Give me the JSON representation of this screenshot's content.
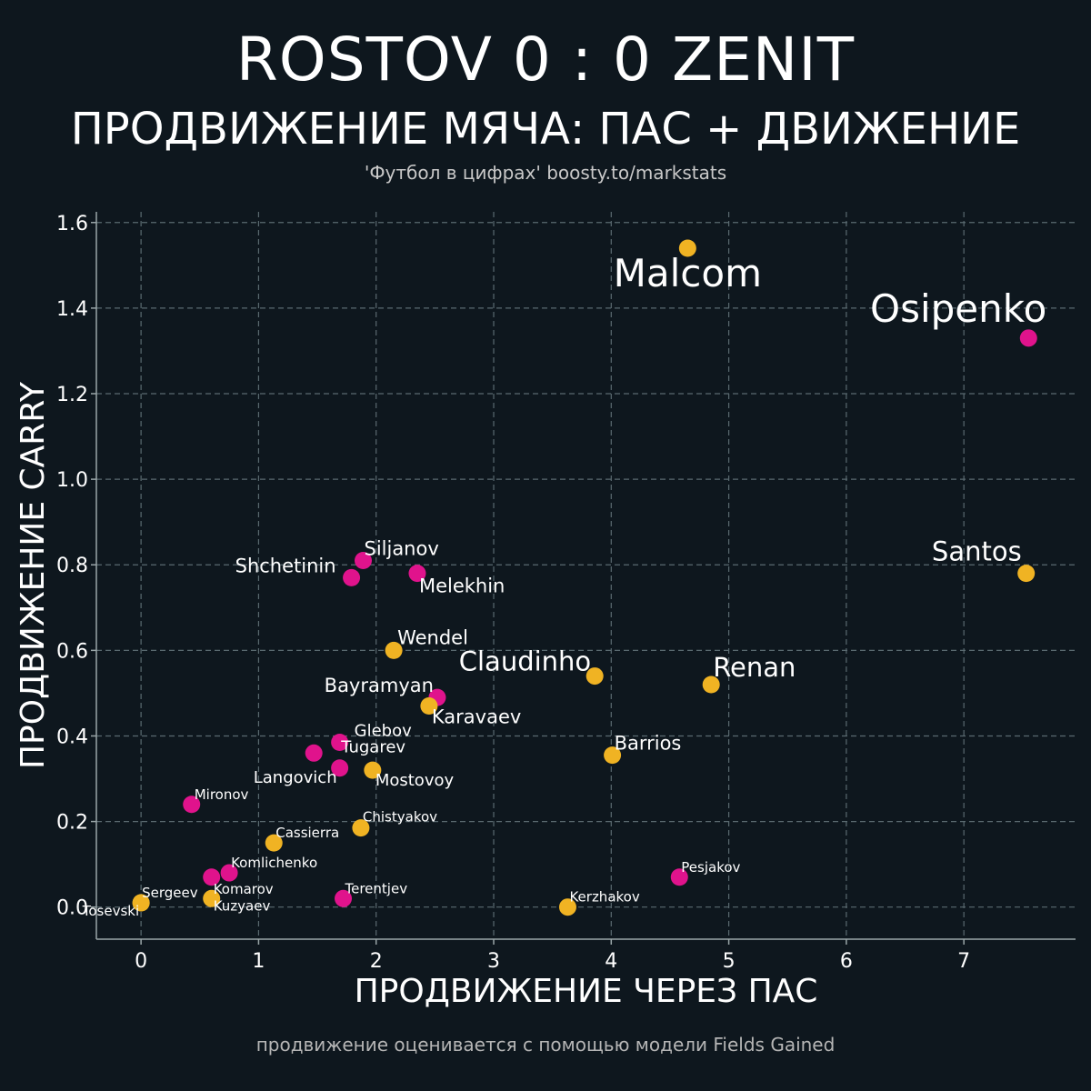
{
  "header": {
    "title": "ROSTOV 0 : 0 ZENIT",
    "subtitle": "ПРОДВИЖЕНИЕ МЯЧА: ПАС + ДВИЖЕНИЕ",
    "source": "'Футбол в цифрах' boosty.to/markstats"
  },
  "footer": {
    "note": "продвижение оценивается с помощью модели Fields Gained"
  },
  "colors": {
    "background": "#0e171e",
    "rostov": "#f0b323",
    "zenit": "#e0138c",
    "grid": "#5a6a70"
  },
  "chart_data": {
    "type": "scatter",
    "xlabel": "ПРОДВИЖЕНИЕ ЧЕРЕЗ ПАС",
    "ylabel": "ПРОДВИЖЕНИЕ CARRY",
    "xlim": [
      -0.38,
      7.95
    ],
    "ylim": [
      -0.075,
      1.625
    ],
    "xticks": [
      0,
      1,
      2,
      3,
      4,
      5,
      6,
      7
    ],
    "yticks": [
      0.0,
      0.2,
      0.4,
      0.6,
      0.8,
      1.0,
      1.2,
      1.4,
      1.6
    ],
    "grid": true,
    "points": [
      {
        "name": "Malcom",
        "x": 4.65,
        "y": 1.54,
        "color": "yellow",
        "size": "xl",
        "anchor": "middle",
        "dx": 0,
        "dy": 42
      },
      {
        "name": "Osipenko",
        "x": 7.55,
        "y": 1.33,
        "color": "pink",
        "size": "xl",
        "anchor": "end",
        "dx": 20,
        "dy": -18
      },
      {
        "name": "Santos",
        "x": 7.53,
        "y": 0.78,
        "color": "yellow",
        "size": "l",
        "anchor": "end",
        "dx": -5,
        "dy": -14
      },
      {
        "name": "Siljanov",
        "x": 1.89,
        "y": 0.81,
        "color": "pink",
        "size": "m",
        "anchor": "start",
        "dx": 1,
        "dy": -6
      },
      {
        "name": "Shchetinin",
        "x": 1.79,
        "y": 0.77,
        "color": "pink",
        "size": "m",
        "anchor": "end",
        "dx": -17,
        "dy": -6
      },
      {
        "name": "Melekhin",
        "x": 2.35,
        "y": 0.78,
        "color": "pink",
        "size": "m",
        "anchor": "start",
        "dx": 2,
        "dy": 21
      },
      {
        "name": "Wendel",
        "x": 2.15,
        "y": 0.6,
        "color": "yellow",
        "size": "m",
        "anchor": "start",
        "dx": 4,
        "dy": -7
      },
      {
        "name": "Claudinho",
        "x": 3.86,
        "y": 0.54,
        "color": "yellow",
        "size": "l",
        "anchor": "end",
        "dx": -4,
        "dy": -6
      },
      {
        "name": "Renan",
        "x": 4.85,
        "y": 0.52,
        "color": "yellow",
        "size": "l",
        "anchor": "start",
        "dx": 2,
        "dy": -9
      },
      {
        "name": "Bayramyan",
        "x": 2.52,
        "y": 0.49,
        "color": "pink",
        "size": "m",
        "anchor": "end",
        "dx": -4,
        "dy": -6
      },
      {
        "name": "Karavaev",
        "x": 2.45,
        "y": 0.47,
        "color": "yellow",
        "size": "m",
        "anchor": "start",
        "dx": 3,
        "dy": 19
      },
      {
        "name": "Barrios",
        "x": 4.01,
        "y": 0.355,
        "color": "yellow",
        "size": "m",
        "anchor": "start",
        "dx": 2,
        "dy": -6
      },
      {
        "name": "Glebov",
        "x": 1.69,
        "y": 0.385,
        "color": "pink",
        "size": "s",
        "anchor": "start",
        "dx": 16,
        "dy": -7
      },
      {
        "name": "Tugarev",
        "x": 1.47,
        "y": 0.36,
        "color": "pink",
        "size": "s",
        "anchor": "start",
        "dx": 30,
        "dy": -1
      },
      {
        "name": "Langovich",
        "x": 1.69,
        "y": 0.325,
        "color": "pink",
        "size": "s",
        "anchor": "end",
        "dx": -3,
        "dy": 16
      },
      {
        "name": "Mostovoy",
        "x": 1.97,
        "y": 0.32,
        "color": "yellow",
        "size": "s",
        "anchor": "start",
        "dx": 3,
        "dy": 17
      },
      {
        "name": "Mironov",
        "x": 0.43,
        "y": 0.24,
        "color": "pink",
        "size": "xs",
        "anchor": "start",
        "dx": 3,
        "dy": -6
      },
      {
        "name": "Chistyakov",
        "x": 1.87,
        "y": 0.185,
        "color": "yellow",
        "size": "xs",
        "anchor": "start",
        "dx": 2,
        "dy": -7
      },
      {
        "name": "Cassierra",
        "x": 1.13,
        "y": 0.15,
        "color": "yellow",
        "size": "xs",
        "anchor": "start",
        "dx": 2,
        "dy": -6
      },
      {
        "name": "Komlichenko",
        "x": 0.75,
        "y": 0.08,
        "color": "pink",
        "size": "xs",
        "anchor": "start",
        "dx": 2,
        "dy": -6
      },
      {
        "name": "Komarov",
        "x": 0.6,
        "y": 0.07,
        "color": "pink",
        "size": "xs",
        "anchor": "start",
        "dx": 2,
        "dy": 18
      },
      {
        "name": "Pesjakov",
        "x": 4.58,
        "y": 0.07,
        "color": "pink",
        "size": "xs",
        "anchor": "start",
        "dx": 2,
        "dy": -6
      },
      {
        "name": "Terentjev",
        "x": 1.72,
        "y": 0.02,
        "color": "pink",
        "size": "xs",
        "anchor": "start",
        "dx": 2,
        "dy": -6
      },
      {
        "name": "Sergeev",
        "x": 0.0,
        "y": 0.01,
        "color": "yellow",
        "size": "xs",
        "anchor": "start",
        "dx": 1,
        "dy": -6
      },
      {
        "name": "Kuzyaev",
        "x": 0.6,
        "y": 0.02,
        "color": "yellow",
        "size": "xs",
        "anchor": "start",
        "dx": 2,
        "dy": 13
      },
      {
        "name": "Kerzhakov",
        "x": 3.63,
        "y": 0.0,
        "color": "yellow",
        "size": "xs",
        "anchor": "start",
        "dx": 2,
        "dy": -6
      },
      {
        "name": "Tosevski",
        "x": 0.0,
        "y": 0.01,
        "color": "yellow",
        "size": "xs",
        "anchor": "end",
        "dx": -2,
        "dy": 14
      }
    ]
  }
}
